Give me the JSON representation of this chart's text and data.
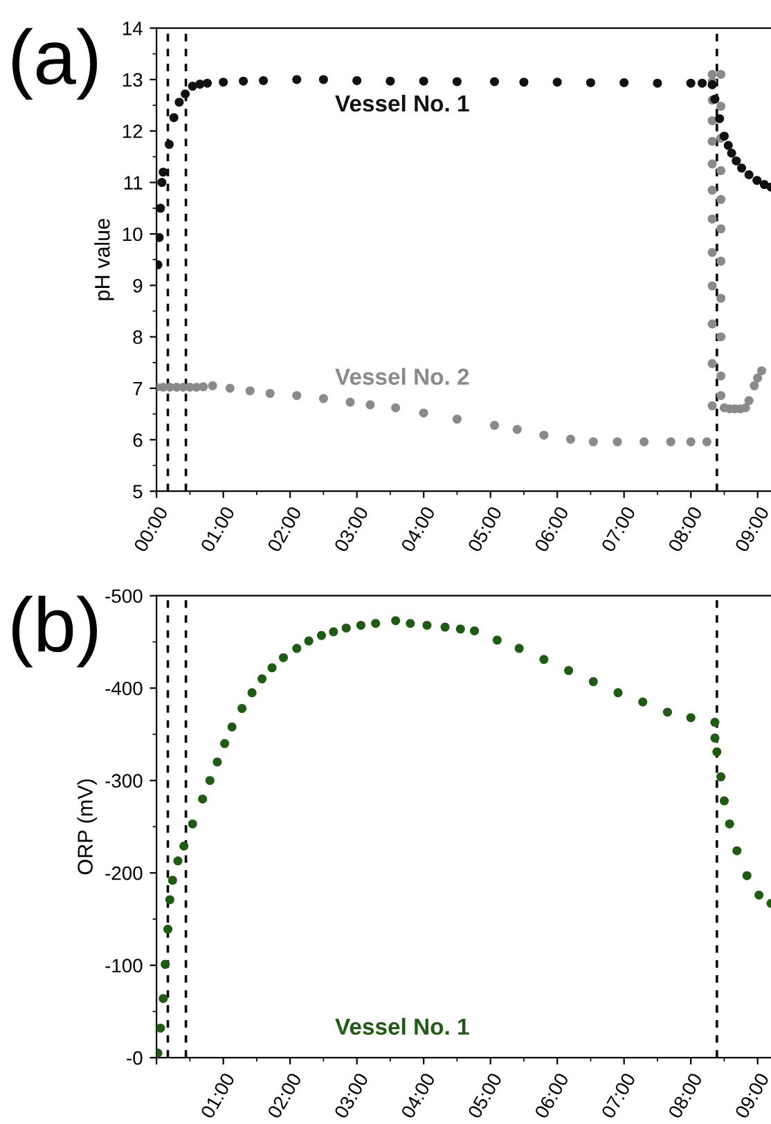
{
  "chart_data": [
    {
      "type": "scatter",
      "title": "(a)",
      "ylabel": "pH value",
      "marker": "circle",
      "grid": false,
      "legend": false,
      "xlim": [
        0,
        9.2
      ],
      "ylim": [
        5,
        14
      ],
      "yticks": [
        5,
        6,
        7,
        8,
        9,
        10,
        11,
        12,
        13,
        14
      ],
      "xticks": [
        {
          "value": 0,
          "label": "00:00"
        },
        {
          "value": 1,
          "label": "01:00"
        },
        {
          "value": 2,
          "label": "02:00"
        },
        {
          "value": 3,
          "label": "03:00"
        },
        {
          "value": 4,
          "label": "04:00"
        },
        {
          "value": 5,
          "label": "05:00"
        },
        {
          "value": 6,
          "label": "06:00"
        },
        {
          "value": 7,
          "label": "07:00"
        },
        {
          "value": 8,
          "label": "08:00"
        },
        {
          "value": 9,
          "label": "09:00"
        }
      ],
      "ref_lines": [
        {
          "axis": "x",
          "value": 0.17,
          "line_style": "dashed",
          "color": "#000000"
        },
        {
          "axis": "x",
          "value": 0.44,
          "line_style": "dashed",
          "color": "#000000"
        },
        {
          "axis": "x",
          "value": 8.39,
          "line_style": "dashed",
          "color": "#000000"
        }
      ],
      "series": [
        {
          "name": "Vessel No. 1",
          "color": "#111111",
          "x": [
            0.02,
            0.04,
            0.06,
            0.08,
            0.1,
            0.19,
            0.26,
            0.34,
            0.43,
            0.54,
            0.65,
            0.76,
            1.0,
            1.3,
            1.6,
            2.1,
            2.5,
            3.0,
            3.5,
            4.0,
            4.5,
            5.06,
            5.5,
            6.0,
            6.5,
            7.0,
            7.5,
            8.0,
            8.17,
            8.32,
            8.36,
            8.43,
            8.5,
            8.56,
            8.61,
            8.68,
            8.76,
            8.87,
            8.99,
            9.1,
            9.2
          ],
          "values": [
            9.4,
            9.93,
            10.5,
            11.0,
            11.2,
            11.74,
            12.26,
            12.56,
            12.72,
            12.87,
            12.91,
            12.93,
            12.95,
            12.97,
            12.98,
            13.0,
            13.0,
            12.98,
            12.97,
            12.97,
            12.96,
            12.96,
            12.95,
            12.95,
            12.94,
            12.94,
            12.93,
            12.93,
            12.93,
            12.9,
            12.62,
            12.24,
            11.9,
            11.72,
            11.57,
            11.42,
            11.28,
            11.15,
            11.04,
            10.96,
            10.91
          ]
        },
        {
          "name": "Vessel No. 2",
          "color": "#8a8a8a",
          "x": [
            0,
            0.1,
            0.2,
            0.3,
            0.4,
            0.5,
            0.6,
            0.7,
            0.84,
            1.1,
            1.4,
            1.7,
            2.1,
            2.5,
            2.9,
            3.2,
            3.58,
            4.0,
            4.5,
            5.06,
            5.4,
            5.8,
            6.2,
            6.54,
            6.9,
            7.3,
            7.7,
            8.0,
            8.24,
            8.32,
            8.32,
            8.32,
            8.32,
            8.32,
            8.32,
            8.32,
            8.32,
            8.32,
            8.32,
            8.32,
            8.32,
            8.32,
            8.45,
            8.45,
            8.45,
            8.45,
            8.45,
            8.45,
            8.45,
            8.45,
            8.45,
            8.45,
            8.45,
            8.5,
            8.58,
            8.66,
            8.74,
            8.82,
            8.87,
            8.95,
            9.0,
            9.06
          ],
          "values": [
            7.02,
            7.02,
            7.02,
            7.02,
            7.02,
            7.02,
            7.02,
            7.03,
            7.05,
            7.0,
            6.95,
            6.9,
            6.86,
            6.8,
            6.73,
            6.68,
            6.62,
            6.52,
            6.4,
            6.28,
            6.2,
            6.09,
            6.01,
            5.96,
            5.96,
            5.96,
            5.96,
            5.96,
            5.96,
            6.66,
            7.48,
            8.25,
            8.99,
            9.64,
            10.29,
            10.85,
            11.36,
            11.8,
            12.2,
            12.6,
            12.96,
            13.1,
            13.1,
            12.48,
            11.86,
            11.23,
            10.67,
            10.1,
            9.47,
            8.75,
            8.0,
            7.24,
            6.86,
            6.62,
            6.6,
            6.6,
            6.6,
            6.62,
            6.76,
            7.05,
            7.2,
            7.34
          ]
        }
      ]
    },
    {
      "type": "scatter",
      "title": "(b)",
      "ylabel": "ORP (mV)",
      "marker": "circle",
      "grid": false,
      "legend": false,
      "xlim": [
        0,
        9.2
      ],
      "ylim": [
        0,
        -500
      ],
      "yticks": [
        {
          "value": 0,
          "label": "-0"
        },
        -100,
        -200,
        -300,
        -400,
        -500
      ],
      "xticks": [
        {
          "value": 0,
          "label": null
        },
        {
          "value": 1,
          "label": "01:00"
        },
        {
          "value": 2,
          "label": "02:00"
        },
        {
          "value": 3,
          "label": "03:00"
        },
        {
          "value": 4,
          "label": "04:00"
        },
        {
          "value": 5,
          "label": "05:00"
        },
        {
          "value": 6,
          "label": "06:00"
        },
        {
          "value": 7,
          "label": "07:00"
        },
        {
          "value": 8,
          "label": "08:00"
        },
        {
          "value": 9,
          "label": "09:00"
        }
      ],
      "ref_lines": [
        {
          "axis": "x",
          "value": 0.17,
          "line_style": "dashed",
          "color": "#000000"
        },
        {
          "axis": "x",
          "value": 0.44,
          "line_style": "dashed",
          "color": "#000000"
        },
        {
          "axis": "x",
          "value": 8.39,
          "line_style": "dashed",
          "color": "#000000"
        }
      ],
      "series": [
        {
          "name": "Vessel No. 1",
          "color": "#1e5c12",
          "x": [
            0.02,
            0.06,
            0.1,
            0.13,
            0.17,
            0.2,
            0.24,
            0.32,
            0.41,
            0.54,
            0.69,
            0.8,
            0.91,
            1.02,
            1.13,
            1.28,
            1.43,
            1.58,
            1.73,
            1.9,
            2.1,
            2.28,
            2.47,
            2.65,
            2.84,
            3.06,
            3.28,
            3.58,
            3.8,
            4.05,
            4.32,
            4.55,
            4.76,
            5.1,
            5.43,
            5.8,
            6.17,
            6.54,
            6.91,
            7.28,
            7.65,
            8.0,
            8.36,
            8.36,
            8.39,
            8.45,
            8.5,
            8.58,
            8.69,
            8.84,
            9.02,
            9.2
          ],
          "values": [
            -5,
            -32,
            -64,
            -101,
            -139,
            -171,
            -192,
            -213,
            -229,
            -253,
            -280,
            -300,
            -320,
            -340,
            -358,
            -378,
            -395,
            -410,
            -422,
            -433,
            -443,
            -451,
            -457,
            -461,
            -465,
            -468,
            -470,
            -473,
            -470,
            -468,
            -466,
            -464,
            -462,
            -452,
            -443,
            -431,
            -419,
            -407,
            -395,
            -385,
            -374,
            -368,
            -363,
            -346,
            -331,
            -304,
            -278,
            -253,
            -224,
            -197,
            -176,
            -167
          ]
        }
      ]
    }
  ]
}
